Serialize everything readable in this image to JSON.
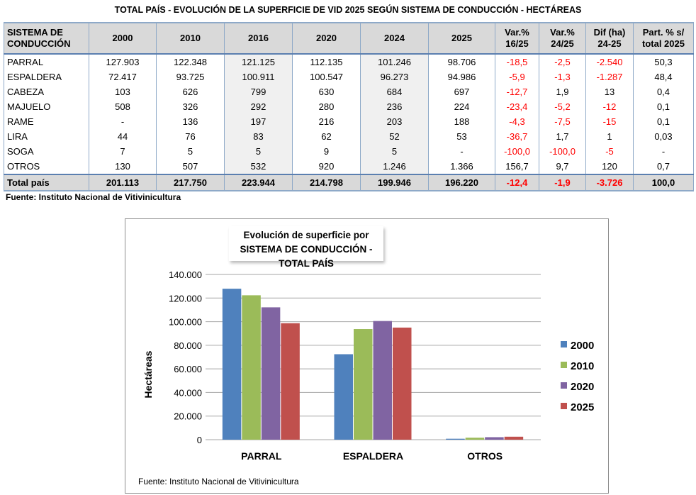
{
  "title": "TOTAL PAÍS - EVOLUCIÓN DE LA SUPERFICIE  DE VID 2025 SEGÚN SISTEMA DE CONDUCCIÓN - HECTÁREAS",
  "table": {
    "headers": [
      [
        "SISTEMA DE",
        "CONDUCCIÓN"
      ],
      [
        "2000"
      ],
      [
        "2010"
      ],
      [
        "2016"
      ],
      [
        "2020"
      ],
      [
        "2024"
      ],
      [
        "2025"
      ],
      [
        "Var.%",
        "16/25"
      ],
      [
        "Var.%",
        "24/25"
      ],
      [
        "Dif (ha)",
        "24-25"
      ],
      [
        "Part. % s/",
        "total 2025"
      ]
    ],
    "rows": [
      [
        "PARRAL",
        "127.903",
        "122.348",
        "121.125",
        "112.135",
        "101.246",
        "98.706",
        "-18,5",
        "-2,5",
        "-2.540",
        "50,3"
      ],
      [
        "ESPALDERA",
        "72.417",
        "93.725",
        "100.911",
        "100.547",
        "96.273",
        "94.986",
        "-5,9",
        "-1,3",
        "-1.287",
        "48,4"
      ],
      [
        "CABEZA",
        "103",
        "626",
        "799",
        "630",
        "684",
        "697",
        "-12,7",
        "1,9",
        "13",
        "0,4"
      ],
      [
        "MAJUELO",
        "508",
        "326",
        "292",
        "280",
        "236",
        "224",
        "-23,4",
        "-5,2",
        "-12",
        "0,1"
      ],
      [
        "RAME",
        "-",
        "136",
        "197",
        "216",
        "203",
        "188",
        "-4,3",
        "-7,5",
        "-15",
        "0,1"
      ],
      [
        "LIRA",
        "44",
        "76",
        "83",
        "62",
        "52",
        "53",
        "-36,7",
        "1,7",
        "1",
        "0,03"
      ],
      [
        "SOGA",
        "7",
        "5",
        "5",
        "9",
        "5",
        "-",
        "-100,0",
        "-100,0",
        "-5",
        "-"
      ],
      [
        "OTROS",
        "130",
        "507",
        "532",
        "920",
        "1.246",
        "1.366",
        "156,7",
        "9,7",
        "120",
        "0,7"
      ]
    ],
    "total": [
      "Total país",
      "201.113",
      "217.750",
      "223.944",
      "214.798",
      "199.946",
      "196.220",
      "-12,4",
      "-1,9",
      "-3.726",
      "100,0"
    ]
  },
  "source": "Fuente: Instituto Nacional de Vitivinicultura",
  "chart_data": {
    "type": "bar",
    "title": [
      "Evolución de superficie por",
      "SISTEMA DE CONDUCCIÓN - TOTAL PAÍS"
    ],
    "ylabel": "Hectáreas",
    "xlabel": "",
    "ylim": [
      0,
      140000
    ],
    "yticks": [
      "0",
      "20.000",
      "40.000",
      "60.000",
      "80.000",
      "100.000",
      "120.000",
      "140.000"
    ],
    "categories": [
      "PARRAL",
      "ESPALDERA",
      "OTROS"
    ],
    "series": [
      {
        "name": "2000",
        "color": "#4f81bd",
        "values": [
          127903,
          72417,
          792
        ]
      },
      {
        "name": "2010",
        "color": "#9bbb59",
        "values": [
          122348,
          93725,
          1676
        ]
      },
      {
        "name": "2020",
        "color": "#8064a2",
        "values": [
          112135,
          100547,
          2117
        ]
      },
      {
        "name": "2025",
        "color": "#c0504d",
        "values": [
          98706,
          94986,
          2528
        ]
      }
    ],
    "grid": true,
    "legend": "right",
    "source": "Fuente: Instituto Nacional de Vitivinicultura"
  }
}
